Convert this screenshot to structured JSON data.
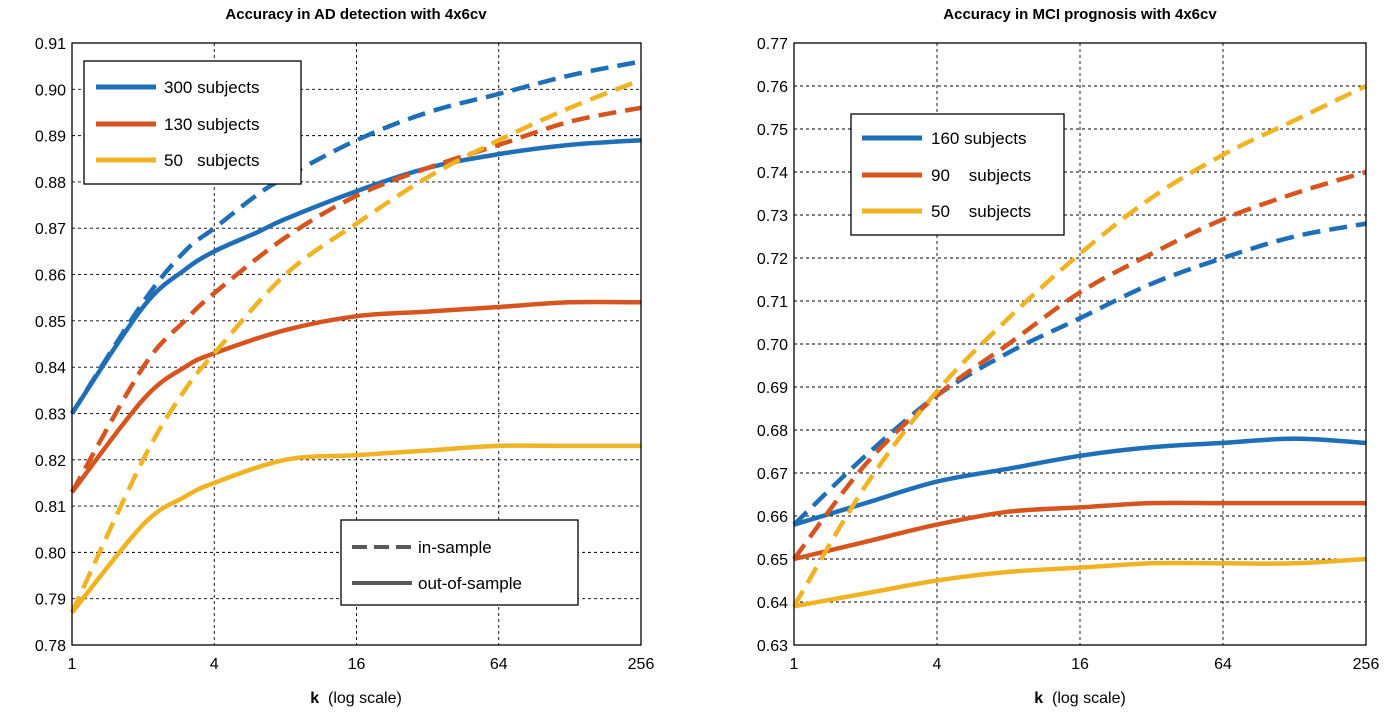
{
  "chart_data": [
    {
      "type": "line",
      "title": "Accuracy in AD detection with 4x6cv",
      "xlabel_bold": "k",
      "xlabel_rest": "(log scale)",
      "xscale": "log2",
      "xlim": [
        1,
        256
      ],
      "xticks": [
        "1",
        "4",
        "16",
        "64",
        "256"
      ],
      "xtick_values": [
        1,
        4,
        16,
        64,
        256
      ],
      "ylim": [
        0.78,
        0.91
      ],
      "yticks": [
        "0.78",
        "0.79",
        "0.80",
        "0.81",
        "0.82",
        "0.83",
        "0.84",
        "0.85",
        "0.86",
        "0.87",
        "0.88",
        "0.89",
        "0.90",
        "0.91"
      ],
      "grid": true,
      "legend": {
        "placement": "top-left",
        "entries": [
          "300 subjects",
          "130 subjects",
          "50   subjects"
        ]
      },
      "style_legend": {
        "placement": "bottom-right",
        "entries": [
          "in-sample",
          "out-of-sample"
        ]
      },
      "series": [
        {
          "name": "300 subjects",
          "style": "in-sample",
          "color": "#1f6fb8",
          "x": [
            1,
            2,
            3,
            4,
            6,
            8,
            16,
            32,
            64,
            128,
            256
          ],
          "y": [
            0.83,
            0.854,
            0.865,
            0.87,
            0.877,
            0.881,
            0.889,
            0.895,
            0.899,
            0.903,
            0.906
          ]
        },
        {
          "name": "300 subjects",
          "style": "out-of-sample",
          "color": "#1f6fb8",
          "x": [
            1,
            2,
            3,
            4,
            6,
            8,
            16,
            32,
            64,
            128,
            256
          ],
          "y": [
            0.83,
            0.853,
            0.861,
            0.865,
            0.869,
            0.872,
            0.878,
            0.883,
            0.886,
            0.888,
            0.889
          ]
        },
        {
          "name": "130 subjects",
          "style": "in-sample",
          "color": "#d6541e",
          "x": [
            1,
            2,
            3,
            4,
            8,
            16,
            32,
            64,
            128,
            256
          ],
          "y": [
            0.813,
            0.84,
            0.85,
            0.856,
            0.868,
            0.877,
            0.883,
            0.888,
            0.893,
            0.896
          ]
        },
        {
          "name": "130 subjects",
          "style": "out-of-sample",
          "color": "#d6541e",
          "x": [
            1,
            2,
            3,
            4,
            8,
            16,
            32,
            64,
            128,
            256
          ],
          "y": [
            0.813,
            0.833,
            0.84,
            0.843,
            0.848,
            0.851,
            0.852,
            0.853,
            0.854,
            0.854
          ]
        },
        {
          "name": "50   subjects",
          "style": "in-sample",
          "color": "#f0b323",
          "x": [
            1,
            2,
            3,
            4,
            8,
            16,
            32,
            64,
            128,
            256
          ],
          "y": [
            0.787,
            0.82,
            0.835,
            0.843,
            0.86,
            0.871,
            0.881,
            0.889,
            0.896,
            0.902
          ]
        },
        {
          "name": "50   subjects",
          "style": "out-of-sample",
          "color": "#f0b323",
          "x": [
            1,
            2,
            3,
            4,
            8,
            16,
            32,
            64,
            128,
            256
          ],
          "y": [
            0.787,
            0.806,
            0.812,
            0.815,
            0.82,
            0.821,
            0.822,
            0.823,
            0.823,
            0.823
          ]
        }
      ]
    },
    {
      "type": "line",
      "title": "Accuracy in MCI prognosis with 4x6cv",
      "xlabel_bold": "k",
      "xlabel_rest": "(log scale)",
      "xscale": "log2",
      "xlim": [
        1,
        256
      ],
      "xticks": [
        "1",
        "4",
        "16",
        "64",
        "256"
      ],
      "xtick_values": [
        1,
        4,
        16,
        64,
        256
      ],
      "ylim": [
        0.63,
        0.77
      ],
      "yticks": [
        "0.63",
        "0.64",
        "0.65",
        "0.66",
        "0.67",
        "0.68",
        "0.69",
        "0.70",
        "0.71",
        "0.72",
        "0.73",
        "0.74",
        "0.75",
        "0.76",
        "0.77"
      ],
      "grid": true,
      "legend": {
        "placement": "top-left",
        "entries": [
          "160 subjects",
          "90    subjects",
          "50    subjects"
        ]
      },
      "series": [
        {
          "name": "160 subjects",
          "style": "in-sample",
          "color": "#1f6fb8",
          "x": [
            1,
            2,
            4,
            8,
            16,
            32,
            64,
            128,
            256
          ],
          "y": [
            0.658,
            0.674,
            0.688,
            0.698,
            0.706,
            0.714,
            0.72,
            0.725,
            0.728
          ]
        },
        {
          "name": "160 subjects",
          "style": "out-of-sample",
          "color": "#1f6fb8",
          "x": [
            1,
            2,
            4,
            8,
            16,
            32,
            64,
            128,
            256
          ],
          "y": [
            0.658,
            0.663,
            0.668,
            0.671,
            0.674,
            0.676,
            0.677,
            0.678,
            0.677
          ]
        },
        {
          "name": "90    subjects",
          "style": "in-sample",
          "color": "#d6541e",
          "x": [
            1,
            2,
            4,
            8,
            16,
            32,
            64,
            128,
            256
          ],
          "y": [
            0.65,
            0.672,
            0.688,
            0.7,
            0.712,
            0.721,
            0.729,
            0.735,
            0.74
          ]
        },
        {
          "name": "90    subjects",
          "style": "out-of-sample",
          "color": "#d6541e",
          "x": [
            1,
            2,
            4,
            8,
            16,
            32,
            64,
            128,
            256
          ],
          "y": [
            0.65,
            0.654,
            0.658,
            0.661,
            0.662,
            0.663,
            0.663,
            0.663,
            0.663
          ]
        },
        {
          "name": "50    subjects",
          "style": "in-sample",
          "color": "#f0b323",
          "x": [
            1,
            2,
            4,
            8,
            16,
            32,
            64,
            128,
            256
          ],
          "y": [
            0.639,
            0.667,
            0.689,
            0.706,
            0.721,
            0.734,
            0.744,
            0.752,
            0.76
          ]
        },
        {
          "name": "50    subjects",
          "style": "out-of-sample",
          "color": "#f0b323",
          "x": [
            1,
            2,
            4,
            8,
            16,
            32,
            64,
            128,
            256
          ],
          "y": [
            0.639,
            0.642,
            0.645,
            0.647,
            0.648,
            0.649,
            0.649,
            0.649,
            0.65
          ]
        }
      ]
    }
  ]
}
